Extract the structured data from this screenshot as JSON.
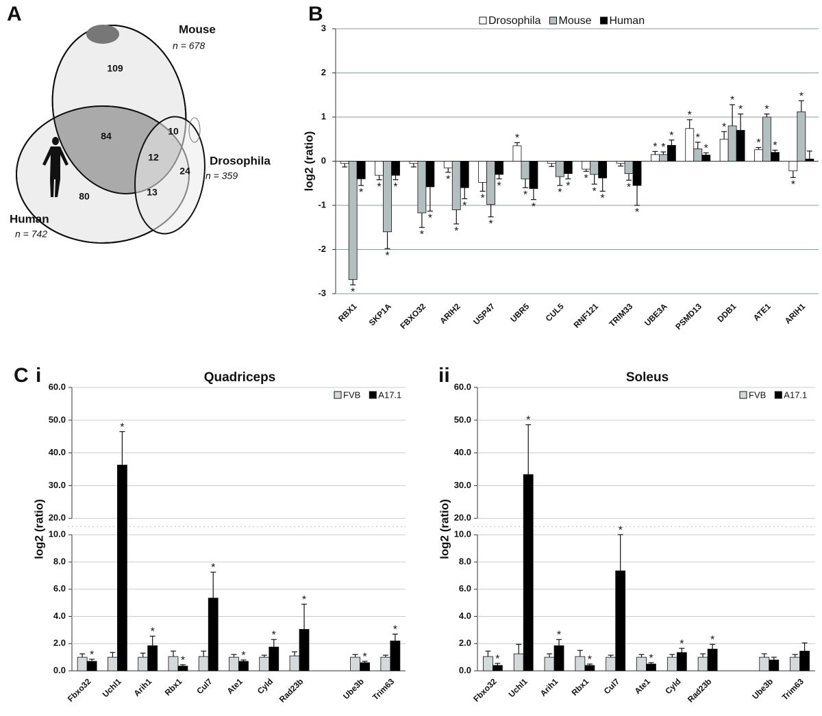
{
  "chart_data": [
    {
      "type": "venn",
      "panel_label": "A",
      "sets": [
        {
          "name": "Mouse",
          "size": {
            "value": 678,
            "label": "n = 678"
          }
        },
        {
          "name": "Human",
          "size": {
            "value": 742,
            "label": "n = 742"
          }
        },
        {
          "name": "Drosophila",
          "size": {
            "value": 359,
            "label": "n = 359"
          }
        }
      ],
      "region_values": [
        109,
        84,
        10,
        12,
        24,
        13,
        80
      ]
    },
    {
      "type": "bar",
      "panel_label": "B",
      "ylabel": "log2 (ratio)",
      "categories": [
        "RBX1",
        "SKP1A",
        "FBXO32",
        "ARIH2",
        "USP47",
        "UBR5",
        "CUL5",
        "RNF121",
        "TRIM33",
        "UBE3A",
        "PSMD13",
        "DDB1",
        "ATE1",
        "ARIH1"
      ],
      "ylim": [
        -3,
        3
      ],
      "yticks": [
        -3,
        -2,
        -1,
        0,
        1,
        2,
        3
      ],
      "grid": true,
      "legend": "top",
      "series": [
        {
          "name": "Drosophila",
          "color": "#ffffff",
          "values": [
            -0.05,
            -0.32,
            -0.05,
            -0.15,
            -0.48,
            0.35,
            -0.05,
            -0.18,
            -0.05,
            0.15,
            0.74,
            0.5,
            0.26,
            -0.22
          ],
          "errors": [
            0.08,
            0.1,
            0.08,
            0.1,
            0.2,
            0.07,
            0.07,
            0.05,
            0.06,
            0.07,
            0.2,
            0.17,
            0.05,
            0.15
          ],
          "annotations": [
            null,
            "*",
            null,
            "*",
            "*",
            "*",
            null,
            "*",
            null,
            "*",
            "*",
            "*",
            "*",
            "*"
          ]
        },
        {
          "name": "Mouse",
          "color": "#b3bfbf",
          "values": [
            -2.68,
            -1.6,
            -1.17,
            -1.1,
            -0.98,
            -0.4,
            -0.35,
            -0.3,
            -0.28,
            0.15,
            0.28,
            0.8,
            1.0,
            1.12
          ],
          "errors": [
            0.12,
            0.38,
            0.33,
            0.32,
            0.28,
            0.2,
            0.2,
            0.22,
            0.15,
            0.06,
            0.15,
            0.48,
            0.07,
            0.25
          ],
          "annotations": [
            "*",
            "*",
            "*",
            "*",
            "*",
            "*",
            "*",
            "*",
            "*",
            "*",
            "*",
            "*",
            "*",
            "*"
          ]
        },
        {
          "name": "Human",
          "color": "#000000",
          "values": [
            -0.4,
            -0.32,
            -0.58,
            -0.6,
            -0.3,
            -0.62,
            -0.28,
            -0.38,
            -0.55,
            0.36,
            0.14,
            0.7,
            0.2,
            0.05
          ],
          "errors": [
            0.15,
            0.1,
            0.55,
            0.25,
            0.1,
            0.25,
            0.12,
            0.3,
            0.45,
            0.12,
            0.05,
            0.37,
            0.05,
            0.18
          ],
          "annotations": [
            "*",
            "*",
            "*",
            "*",
            "*",
            "*",
            "*",
            "*",
            "*",
            "*",
            "*",
            "*",
            "*",
            null
          ]
        }
      ]
    },
    {
      "type": "bar",
      "panel_label": "C",
      "subpanel_label": "i",
      "title": "Quadriceps",
      "ylabel": "log2 (ratio)",
      "categories": [
        "Fbxo32",
        "Uchl1",
        "Arih1",
        "Rbx1",
        "Cul7",
        "Ate1",
        "Cyld",
        "Rad23b",
        null,
        "Ube3b",
        "Trim63"
      ],
      "ylim": [
        0,
        60
      ],
      "ybreak": [
        10,
        20
      ],
      "grid": true,
      "legend": "upper right",
      "yticks": [
        {
          "value": 0,
          "label": "0.0"
        },
        {
          "value": 2,
          "label": "2.0"
        },
        {
          "value": 4,
          "label": "4.0"
        },
        {
          "value": 6,
          "label": "6.0"
        },
        {
          "value": 8,
          "label": "8.0"
        },
        {
          "value": 10,
          "label": "10.0"
        },
        {
          "value": 20,
          "label": "20.0"
        },
        {
          "value": 30,
          "label": "30.0"
        },
        {
          "value": 40,
          "label": "40.0"
        },
        {
          "value": 50,
          "label": "50.0"
        },
        {
          "value": 60,
          "label": "60.0"
        }
      ],
      "series": [
        {
          "name": "FVB",
          "color": "#d4dada",
          "values": [
            1.0,
            1.0,
            1.0,
            1.05,
            1.05,
            1.0,
            1.0,
            1.1,
            null,
            1.0,
            1.0
          ],
          "errors": [
            0.25,
            0.35,
            0.3,
            0.4,
            0.4,
            0.2,
            0.15,
            0.3,
            null,
            0.2,
            0.15
          ],
          "annotations": [
            null,
            null,
            null,
            null,
            null,
            null,
            null,
            null,
            null,
            null,
            null
          ]
        },
        {
          "name": "A17.1",
          "color": "#000000",
          "values": [
            0.7,
            36.3,
            1.85,
            0.35,
            5.35,
            0.7,
            1.75,
            3.05,
            null,
            0.6,
            2.2
          ],
          "errors": [
            0.15,
            10.2,
            0.7,
            0.1,
            1.9,
            0.1,
            0.55,
            1.85,
            null,
            0.1,
            0.5
          ],
          "annotations": [
            "*",
            "*",
            "*",
            "*",
            "*",
            "*",
            "*",
            "*",
            null,
            "*",
            "*"
          ]
        }
      ]
    },
    {
      "type": "bar",
      "subpanel_label": "ii",
      "title": "Soleus",
      "ylabel": "log2 (ratio)",
      "categories": [
        "Fbxo32",
        "Uchl1",
        "Arih1",
        "Rbx1",
        "Cul7",
        "Ate1",
        "Cyld",
        "Rad23b",
        null,
        "Ube3b",
        "Trim63"
      ],
      "ylim": [
        0,
        60
      ],
      "ybreak": [
        10,
        20
      ],
      "grid": true,
      "legend": "upper right",
      "yticks": [
        {
          "value": 0,
          "label": "0.0"
        },
        {
          "value": 2,
          "label": "2.0"
        },
        {
          "value": 4,
          "label": "4.0"
        },
        {
          "value": 6,
          "label": "6.0"
        },
        {
          "value": 8,
          "label": "8.0"
        },
        {
          "value": 10,
          "label": "10.0"
        },
        {
          "value": 20,
          "label": "20.0"
        },
        {
          "value": 30,
          "label": "30.0"
        },
        {
          "value": 40,
          "label": "40.0"
        },
        {
          "value": 50,
          "label": "50.0"
        },
        {
          "value": 60,
          "label": "60.0"
        }
      ],
      "series": [
        {
          "name": "FVB",
          "color": "#d4dada",
          "values": [
            1.05,
            1.25,
            1.0,
            1.05,
            1.0,
            1.0,
            1.0,
            1.0,
            null,
            1.0,
            1.0
          ],
          "errors": [
            0.4,
            0.7,
            0.25,
            0.45,
            0.15,
            0.2,
            0.2,
            0.25,
            null,
            0.25,
            0.2
          ],
          "annotations": [
            null,
            null,
            null,
            null,
            null,
            null,
            null,
            null,
            null,
            null,
            null
          ]
        },
        {
          "name": "A17.1",
          "color": "#000000",
          "values": [
            0.4,
            33.4,
            1.85,
            0.4,
            7.35,
            0.5,
            1.35,
            1.6,
            null,
            0.8,
            1.45
          ],
          "errors": [
            0.15,
            15.2,
            0.45,
            0.1,
            2.75,
            0.1,
            0.3,
            0.35,
            null,
            0.2,
            0.6
          ],
          "annotations": [
            "*",
            "*",
            "*",
            "*",
            "*",
            "*",
            "*",
            "*",
            null,
            null,
            null
          ]
        }
      ]
    }
  ]
}
